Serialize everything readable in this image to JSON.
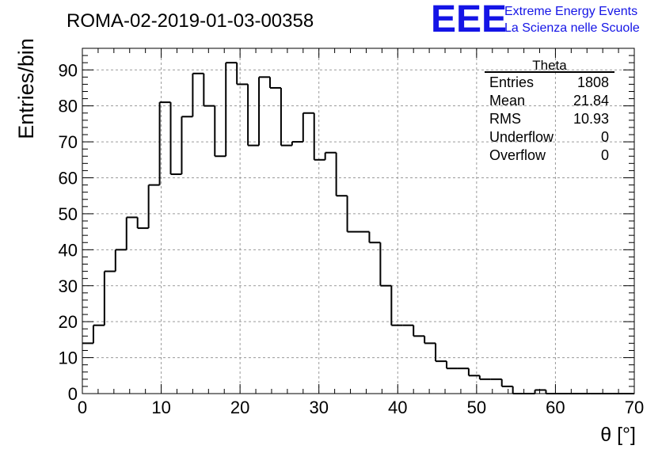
{
  "chart_data": {
    "type": "bar",
    "title": "ROMA-02-2019-01-03-00358",
    "xlabel": "θ [°]",
    "ylabel": "Entries/bin",
    "xlim": [
      0,
      70
    ],
    "ylim": [
      0,
      96
    ],
    "bin_width": 1.4,
    "x_ticks": [
      "0",
      "10",
      "20",
      "30",
      "40",
      "50",
      "60",
      "70"
    ],
    "y_ticks": [
      "0",
      "10",
      "20",
      "30",
      "40",
      "50",
      "60",
      "70",
      "80",
      "90"
    ],
    "values": [
      14,
      19,
      34,
      40,
      49,
      46,
      58,
      81,
      61,
      77,
      89,
      80,
      66,
      92,
      86,
      69,
      88,
      85,
      69,
      70,
      78,
      65,
      67,
      55,
      45,
      45,
      42,
      30,
      19,
      19,
      16,
      14,
      9,
      7,
      7,
      5,
      4,
      4,
      2,
      0,
      0,
      1,
      0,
      0,
      0,
      0,
      0,
      0,
      0,
      0
    ],
    "grid": true,
    "stats_box": {
      "title": "Theta",
      "rows": [
        {
          "label": "Entries",
          "value": "1808"
        },
        {
          "label": "Mean",
          "value": "21.84"
        },
        {
          "label": "RMS",
          "value": "10.93"
        },
        {
          "label": "Underflow",
          "value": "0"
        },
        {
          "label": "Overflow",
          "value": "0"
        }
      ]
    }
  },
  "logo": {
    "mark": "EEE",
    "line1": "Extreme Energy Events",
    "line2": "La Scienza nelle Scuole",
    "color": "#1414e6"
  },
  "colors": {
    "line": "#000000",
    "grid": "#9a9a9a"
  }
}
